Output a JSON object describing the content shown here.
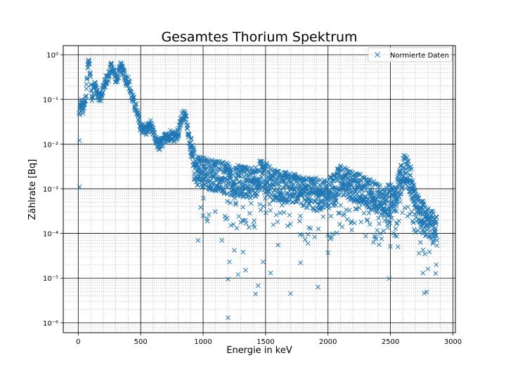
{
  "chart_data": {
    "type": "scatter",
    "title": "Gesamtes Thorium Spektrum",
    "xlabel": "Energie in keV",
    "ylabel": "Zählrate [Bq]",
    "xlim": [
      -120,
      3020
    ],
    "ylim": [
      6e-07,
      1.6
    ],
    "yscale": "log",
    "grid": "major and minor",
    "legend_location": "top-right",
    "marker": "x",
    "series_color": "#1f77b4",
    "x_ticks": [
      0,
      500,
      1000,
      1500,
      2000,
      2500,
      3000
    ],
    "x_tick_labels": [
      "0",
      "500",
      "1000",
      "1500",
      "2000",
      "2500",
      "3000"
    ],
    "y_ticks": [
      1e-06,
      1e-05,
      0.0001,
      0.001,
      0.01,
      0.1,
      1
    ],
    "y_tick_labels": [
      "10⁻⁶",
      "10⁻⁵",
      "10⁻⁴",
      "10⁻³",
      "10⁻²",
      "10⁻¹",
      "10⁰"
    ],
    "series": [
      {
        "name": "Normierte Daten",
        "envelope": [
          [
            5,
            0.05
          ],
          [
            20,
            0.09
          ],
          [
            40,
            0.06
          ],
          [
            60,
            0.12
          ],
          [
            75,
            0.7
          ],
          [
            85,
            0.8
          ],
          [
            95,
            0.3
          ],
          [
            110,
            0.12
          ],
          [
            130,
            0.25
          ],
          [
            150,
            0.15
          ],
          [
            175,
            0.12
          ],
          [
            200,
            0.2
          ],
          [
            230,
            0.32
          ],
          [
            240,
            0.35
          ],
          [
            260,
            0.6
          ],
          [
            280,
            0.5
          ],
          [
            300,
            0.28
          ],
          [
            320,
            0.4
          ],
          [
            340,
            0.55
          ],
          [
            360,
            0.5
          ],
          [
            380,
            0.3
          ],
          [
            400,
            0.28
          ],
          [
            420,
            0.15
          ],
          [
            440,
            0.1
          ],
          [
            460,
            0.07
          ],
          [
            480,
            0.04
          ],
          [
            500,
            0.025
          ],
          [
            520,
            0.025
          ],
          [
            540,
            0.022
          ],
          [
            560,
            0.025
          ],
          [
            580,
            0.03
          ],
          [
            600,
            0.018
          ],
          [
            620,
            0.012
          ],
          [
            650,
            0.01
          ],
          [
            680,
            0.013
          ],
          [
            710,
            0.016
          ],
          [
            740,
            0.018
          ],
          [
            770,
            0.016
          ],
          [
            800,
            0.02
          ],
          [
            820,
            0.035
          ],
          [
            840,
            0.048
          ],
          [
            860,
            0.045
          ],
          [
            880,
            0.02
          ],
          [
            900,
            0.008
          ],
          [
            930,
            0.004
          ],
          [
            960,
            0.0032
          ],
          [
            1000,
            0.003
          ],
          [
            1050,
            0.0027
          ],
          [
            1100,
            0.0025
          ],
          [
            1150,
            0.0023
          ],
          [
            1200,
            0.0021
          ],
          [
            1250,
            0.002
          ],
          [
            1300,
            0.0019
          ],
          [
            1350,
            0.0018
          ],
          [
            1400,
            0.0017
          ],
          [
            1450,
            0.0025
          ],
          [
            1470,
            0.0033
          ],
          [
            1500,
            0.0023
          ],
          [
            1550,
            0.0016
          ],
          [
            1600,
            0.0015
          ],
          [
            1650,
            0.0014
          ],
          [
            1700,
            0.0013
          ],
          [
            1750,
            0.0012
          ],
          [
            1800,
            0.0011
          ],
          [
            1850,
            0.001
          ],
          [
            1900,
            0.001
          ],
          [
            1950,
            0.00095
          ],
          [
            2000,
            0.001
          ],
          [
            2050,
            0.0013
          ],
          [
            2100,
            0.0022
          ],
          [
            2150,
            0.0016
          ],
          [
            2200,
            0.0014
          ],
          [
            2250,
            0.0012
          ],
          [
            2300,
            0.0011
          ],
          [
            2350,
            0.0009
          ],
          [
            2400,
            0.0008
          ],
          [
            2450,
            0.0007
          ],
          [
            2500,
            0.0007
          ],
          [
            2550,
            0.0009
          ],
          [
            2580,
            0.002
          ],
          [
            2610,
            0.0035
          ],
          [
            2640,
            0.003
          ],
          [
            2670,
            0.0015
          ],
          [
            2700,
            0.0006
          ],
          [
            2730,
            0.0004
          ],
          [
            2760,
            0.0003
          ],
          [
            2800,
            0.00022
          ],
          [
            2840,
            0.00018
          ],
          [
            2870,
            0.00015
          ]
        ],
        "outliers": [
          [
            10,
            0.012
          ],
          [
            10,
            0.0011
          ],
          [
            960,
            7e-05
          ],
          [
            1200,
            1.3e-06
          ],
          [
            1210,
            2.3e-05
          ],
          [
            1200,
            9.5e-06
          ],
          [
            1280,
            1.2e-05
          ],
          [
            1340,
            1.5e-05
          ],
          [
            1420,
            4.4e-06
          ],
          [
            1440,
            6.8e-06
          ],
          [
            1480,
            2.3e-05
          ],
          [
            1540,
            1.3e-05
          ],
          [
            1700,
            4.5e-06
          ],
          [
            1780,
            2.2e-05
          ],
          [
            1920,
            6.3e-06
          ],
          [
            2000,
            3.7e-05
          ],
          [
            2490,
            9.8e-06
          ],
          [
            2770,
            4.6e-06
          ],
          [
            2790,
            4.9e-06
          ],
          [
            2760,
            1.3e-05
          ],
          [
            2800,
            1.6e-05
          ],
          [
            1320,
            3.8e-05
          ],
          [
            1250,
            4.2e-05
          ],
          [
            1150,
            7e-05
          ],
          [
            1600,
            5.5e-05
          ],
          [
            1840,
            6e-05
          ],
          [
            2560,
            5e-05
          ]
        ]
      }
    ]
  }
}
